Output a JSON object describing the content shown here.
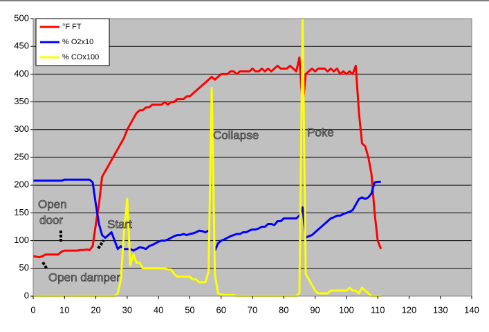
{
  "chart_data": {
    "type": "line",
    "x": [
      0,
      1,
      2,
      3,
      4,
      5,
      6,
      7,
      8,
      9,
      10,
      11,
      12,
      13,
      14,
      15,
      16,
      17,
      18,
      19,
      20,
      21,
      22,
      23,
      24,
      25,
      26,
      27,
      28,
      29,
      30,
      31,
      32,
      33,
      34,
      35,
      36,
      37,
      38,
      39,
      40,
      41,
      42,
      43,
      44,
      45,
      46,
      47,
      48,
      49,
      50,
      51,
      52,
      53,
      54,
      55,
      56,
      57,
      58,
      59,
      60,
      61,
      62,
      63,
      64,
      65,
      66,
      67,
      68,
      69,
      70,
      71,
      72,
      73,
      74,
      75,
      76,
      77,
      78,
      79,
      80,
      81,
      82,
      83,
      84,
      85,
      86,
      87,
      88,
      89,
      90,
      91,
      92,
      93,
      94,
      95,
      96,
      97,
      98,
      99,
      100,
      101,
      102,
      103,
      104,
      105,
      106,
      107,
      108,
      109,
      110,
      111
    ],
    "series": [
      {
        "name": "°F FT",
        "color": "#ff0000",
        "values": [
          72,
          71,
          70,
          72,
          75,
          75,
          75,
          75,
          75,
          80,
          82,
          82,
          82,
          82,
          82,
          83,
          83,
          84,
          83,
          90,
          130,
          165,
          215,
          225,
          235,
          245,
          255,
          265,
          275,
          285,
          300,
          310,
          320,
          330,
          335,
          335,
          340,
          340,
          345,
          345,
          345,
          345,
          350,
          345,
          350,
          350,
          355,
          355,
          355,
          360,
          360,
          365,
          370,
          375,
          380,
          385,
          390,
          395,
          390,
          395,
          400,
          400,
          400,
          405,
          405,
          400,
          405,
          405,
          405,
          405,
          410,
          405,
          405,
          410,
          405,
          410,
          405,
          410,
          415,
          410,
          410,
          410,
          415,
          410,
          405,
          430,
          340,
          400,
          405,
          410,
          405,
          410,
          410,
          410,
          405,
          410,
          405,
          410,
          400,
          405,
          400,
          405,
          400,
          415,
          330,
          275,
          270,
          250,
          220,
          150,
          100,
          85
        ]
      },
      {
        "name": "% O2x10",
        "color": "#0000ff",
        "values": [
          208,
          208,
          208,
          208,
          208,
          208,
          208,
          208,
          208,
          208,
          210,
          210,
          210,
          210,
          210,
          210,
          210,
          210,
          210,
          205,
          165,
          130,
          110,
          105,
          110,
          115,
          100,
          85,
          90,
          85,
          85,
          85,
          82,
          85,
          88,
          87,
          85,
          90,
          92,
          95,
          98,
          100,
          100,
          102,
          105,
          108,
          110,
          110,
          112,
          110,
          112,
          113,
          115,
          118,
          117,
          115,
          118,
          null,
          82,
          95,
          100,
          102,
          105,
          108,
          110,
          112,
          112,
          115,
          115,
          118,
          120,
          120,
          122,
          125,
          125,
          130,
          130,
          128,
          135,
          135,
          140,
          140,
          140,
          140,
          140,
          145,
          160,
          105,
          108,
          110,
          115,
          120,
          125,
          130,
          135,
          140,
          142,
          145,
          145,
          148,
          150,
          152,
          155,
          165,
          175,
          178,
          175,
          178,
          185,
          205,
          206,
          206
        ]
      },
      {
        "name": "% COx100",
        "color": "#ffff00",
        "values": [
          0,
          0,
          0,
          0,
          0,
          0,
          0,
          0,
          0,
          0,
          0,
          0,
          0,
          0,
          0,
          0,
          0,
          0,
          0,
          0,
          0,
          0,
          0,
          0,
          0,
          0,
          0,
          5,
          30,
          115,
          175,
          55,
          75,
          60,
          60,
          50,
          50,
          50,
          50,
          50,
          50,
          50,
          50,
          48,
          48,
          40,
          35,
          35,
          35,
          35,
          35,
          30,
          30,
          25,
          25,
          25,
          45,
          375,
          40,
          5,
          3,
          2,
          2,
          2,
          2,
          0,
          0,
          0,
          0,
          0,
          0,
          0,
          0,
          0,
          0,
          0,
          0,
          0,
          0,
          0,
          0,
          0,
          0,
          0,
          0,
          5,
          500,
          40,
          30,
          20,
          10,
          5,
          5,
          5,
          5,
          10,
          10,
          10,
          10,
          10,
          10,
          15,
          10,
          10,
          5,
          15,
          10,
          5,
          0,
          0,
          0,
          0
        ]
      }
    ],
    "xlim": [
      0,
      140
    ],
    "xticks": [
      0,
      10,
      20,
      30,
      40,
      50,
      60,
      70,
      80,
      90,
      100,
      110,
      120,
      130,
      140
    ],
    "ylim": [
      0,
      500
    ],
    "yticks": [
      0,
      50,
      100,
      150,
      200,
      250,
      300,
      350,
      400,
      450,
      500
    ],
    "grid": true,
    "legend": "upper left",
    "annotations": [
      "Open",
      "door",
      "Start",
      "Open damper",
      "Collapse",
      "Poke"
    ]
  }
}
